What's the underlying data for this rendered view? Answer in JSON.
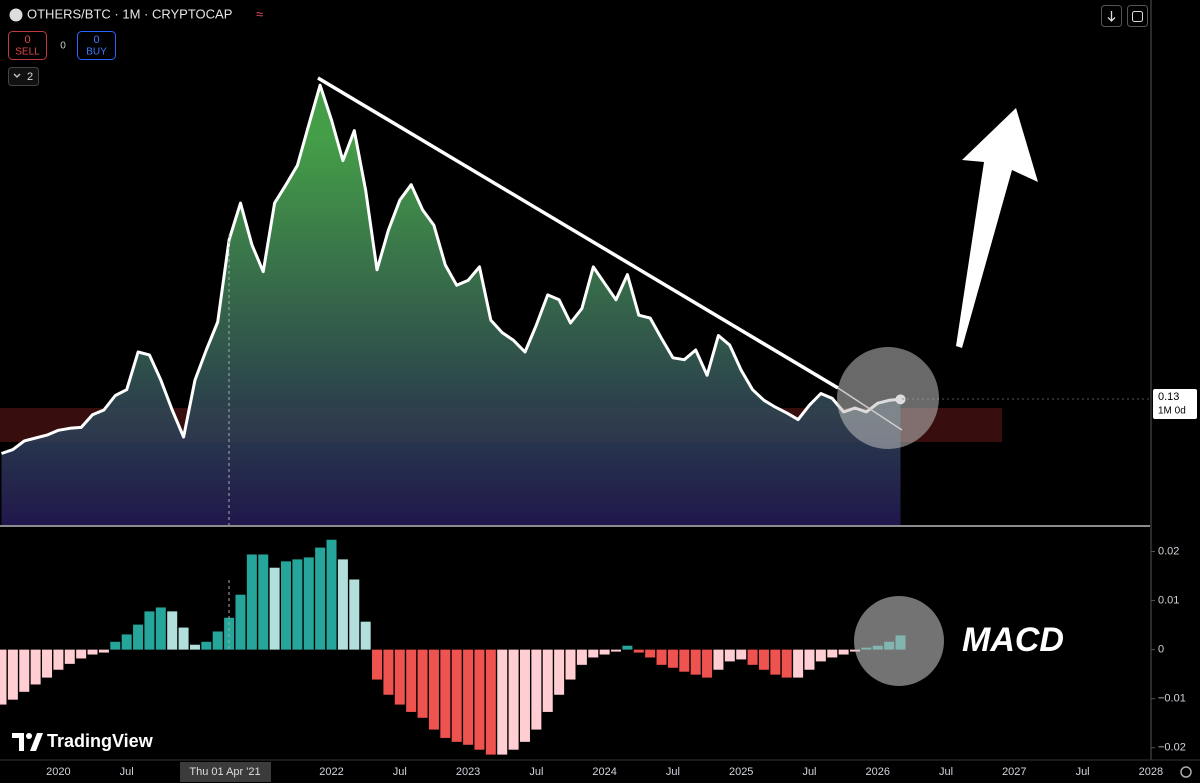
{
  "header": {
    "symbol": "OTHERS/BTC · 1M · CRYPTOCAP",
    "sell_count": "0",
    "sell": "SELL",
    "spread": "0",
    "buy_count": "0",
    "buy": "BUY",
    "indicators": "2"
  },
  "crosshair": {
    "label": "Thu 01 Apr '21"
  },
  "countdown": "1M 0d",
  "annotation": "MACD",
  "watermark": "TradingView",
  "chart_data": [
    {
      "type": "area",
      "color": "#ffffff",
      "fill_top": "#4caf50",
      "fill_bottom": "#231a55",
      "ylim": [
        0,
        0.54
      ],
      "categories": [
        null,
        null,
        null,
        null,
        null,
        "2020",
        null,
        null,
        null,
        null,
        null,
        "Jul",
        null,
        null,
        null,
        null,
        null,
        null,
        null,
        null,
        null,
        null,
        null,
        null,
        null,
        null,
        null,
        null,
        null,
        "2022",
        null,
        null,
        null,
        null,
        null,
        "Jul",
        null,
        null,
        null,
        null,
        null,
        "2023",
        null,
        null,
        null,
        null,
        null,
        "Jul",
        null,
        null,
        null,
        null,
        null,
        "2024",
        null,
        null,
        null,
        null,
        null,
        "Jul",
        null,
        null,
        null,
        null,
        null,
        "2025",
        null,
        null,
        null,
        null,
        null,
        "Jul",
        null,
        null,
        null,
        null,
        null,
        "2026",
        null,
        null,
        null,
        null,
        null,
        "Jul",
        null,
        null,
        null,
        null,
        null,
        "2027",
        null,
        null,
        null,
        null,
        null,
        "Jul",
        null,
        null,
        null,
        null,
        null,
        "2028"
      ],
      "values": [
        0.074,
        0.078,
        0.087,
        0.09,
        0.093,
        0.098,
        0.1,
        0.101,
        0.114,
        0.119,
        0.134,
        0.14,
        0.179,
        0.176,
        0.15,
        0.119,
        0.091,
        0.15,
        0.181,
        0.21,
        0.295,
        0.333,
        0.29,
        0.262,
        0.333,
        0.352,
        0.372,
        0.414,
        0.455,
        0.419,
        0.377,
        0.408,
        0.346,
        0.264,
        0.305,
        0.336,
        0.352,
        0.326,
        0.31,
        0.269,
        0.248,
        0.253,
        0.267,
        0.212,
        0.199,
        0.191,
        0.179,
        0.207,
        0.238,
        0.233,
        0.209,
        0.224,
        0.267,
        0.25,
        0.233,
        0.259,
        0.217,
        0.214,
        0.193,
        0.173,
        0.171,
        0.181,
        0.155,
        0.196,
        0.186,
        0.16,
        0.14,
        0.129,
        0.122,
        0.116,
        0.109,
        0.124,
        0.136,
        0.131,
        0.117,
        0.121,
        0.117,
        0.126,
        0.129,
        0.13,
        null,
        null,
        null,
        null,
        null,
        null,
        null,
        null,
        null,
        null,
        null,
        null,
        null,
        null,
        null,
        null,
        null,
        null,
        null,
        null,
        null,
        null
      ]
    },
    {
      "type": "histogram",
      "ylim": [
        -0.0225,
        0.025
      ],
      "yticks": [
        0.02,
        0.01,
        0,
        {
          "value": -0.01,
          "label": "−0.01"
        },
        {
          "value": -0.02,
          "label": "−0.02"
        }
      ],
      "colors": {
        "rise_above": "#26a69a",
        "fall_above": "#b2dfdb",
        "fall_below": "#ef5350",
        "rise_below": "#ffcdd2"
      },
      "values": [
        -0.0112,
        -0.0102,
        -0.0086,
        -0.0071,
        -0.0057,
        -0.0041,
        -0.0029,
        -0.0018,
        -0.001,
        -0.0006,
        0.0016,
        0.0031,
        0.0051,
        0.0078,
        0.0086,
        0.0078,
        0.0045,
        0.001,
        0.0016,
        0.0037,
        0.0065,
        0.0112,
        0.0194,
        0.0194,
        0.0167,
        0.018,
        0.0184,
        0.0188,
        0.0208,
        0.0224,
        0.0184,
        0.0143,
        0.0057,
        -0.0061,
        -0.0092,
        -0.0112,
        -0.0127,
        -0.0139,
        -0.0163,
        -0.018,
        -0.0188,
        -0.0194,
        -0.0204,
        -0.0214,
        -0.0214,
        -0.0204,
        -0.0188,
        -0.0163,
        -0.0127,
        -0.0092,
        -0.0061,
        -0.0031,
        -0.0016,
        -0.001,
        -0.0004,
        0.0008,
        -0.0006,
        -0.0016,
        -0.0031,
        -0.0037,
        -0.0045,
        -0.0051,
        -0.0057,
        -0.0041,
        -0.0024,
        -0.002,
        -0.0031,
        -0.0041,
        -0.0051,
        -0.0057,
        -0.0057,
        -0.0041,
        -0.0024,
        -0.0016,
        -0.001,
        -0.0004,
        0.0004,
        0.0008,
        0.0016,
        0.0029,
        null,
        null,
        null,
        null,
        null,
        null,
        null,
        null,
        null,
        null,
        null,
        null,
        null,
        null,
        null,
        null,
        null,
        null,
        null,
        null,
        null,
        null
      ]
    }
  ]
}
